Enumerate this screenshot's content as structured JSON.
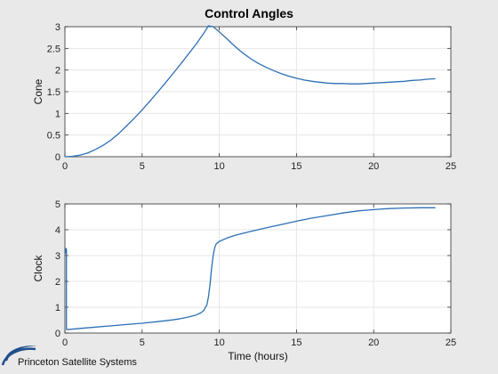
{
  "figure_title": "Control Angles",
  "logo": {
    "text": "Princeton Satellite Systems",
    "color": "#1f4e8c"
  },
  "colors": {
    "line": "#2d6fb5",
    "background": "#e9e9e9",
    "axes_bg": "#ffffff",
    "grid": "#e6e6e6"
  },
  "chart_data": [
    {
      "type": "line",
      "title": "Control Angles",
      "xlabel": "",
      "ylabel": "Cone",
      "xlim": [
        0,
        25
      ],
      "ylim": [
        0,
        3
      ],
      "xticks": [
        "0",
        "5",
        "10",
        "15",
        "20",
        "25"
      ],
      "yticks": [
        "0",
        "0.5",
        "1",
        "1.5",
        "2",
        "2.5",
        "3"
      ],
      "grid": true,
      "series": [
        {
          "x": [
            0,
            0.5,
            1,
            1.5,
            2,
            2.5,
            3,
            3.5,
            4,
            4.5,
            5,
            5.5,
            6,
            6.5,
            7,
            7.5,
            8,
            8.5,
            9,
            9.3,
            9.6,
            10,
            10.5,
            11,
            11.5,
            12,
            12.5,
            13,
            13.5,
            14,
            14.5,
            15,
            15.5,
            16,
            16.5,
            17,
            17.5,
            18,
            18.5,
            19,
            19.5,
            20,
            20.5,
            21,
            21.5,
            22,
            22.5,
            23,
            23.5,
            24
          ],
          "y": [
            0,
            0.01,
            0.04,
            0.09,
            0.17,
            0.27,
            0.39,
            0.54,
            0.71,
            0.89,
            1.08,
            1.28,
            1.49,
            1.7,
            1.92,
            2.14,
            2.37,
            2.6,
            2.85,
            3.02,
            3.0,
            2.88,
            2.72,
            2.55,
            2.4,
            2.27,
            2.16,
            2.07,
            1.99,
            1.92,
            1.86,
            1.81,
            1.77,
            1.74,
            1.72,
            1.7,
            1.69,
            1.69,
            1.68,
            1.68,
            1.69,
            1.7,
            1.71,
            1.72,
            1.73,
            1.74,
            1.76,
            1.77,
            1.79,
            1.8
          ]
        }
      ]
    },
    {
      "type": "line",
      "title": "",
      "xlabel": "Time (hours)",
      "ylabel": "Clock",
      "xlim": [
        0,
        25
      ],
      "ylim": [
        0,
        5
      ],
      "xticks": [
        "0",
        "5",
        "10",
        "15",
        "20",
        "25"
      ],
      "yticks": [
        "0",
        "1",
        "2",
        "3",
        "4",
        "5"
      ],
      "grid": true,
      "series": [
        {
          "x": [
            0.05,
            0.05,
            0.1,
            0.1,
            0.12,
            1,
            2,
            3,
            4,
            5,
            6,
            7,
            7.5,
            8,
            8.5,
            8.8,
            9,
            9.2,
            9.3,
            9.4,
            9.5,
            9.6,
            9.7,
            9.8,
            10,
            10.5,
            11,
            12,
            13,
            14,
            15,
            16,
            17,
            18,
            19,
            20,
            21,
            22,
            23,
            24
          ],
          "y": [
            3.3,
            3.1,
            3.25,
            0.15,
            0.13,
            0.18,
            0.23,
            0.28,
            0.33,
            0.38,
            0.44,
            0.51,
            0.56,
            0.62,
            0.7,
            0.78,
            0.88,
            1.1,
            1.4,
            1.9,
            2.5,
            3.0,
            3.3,
            3.45,
            3.55,
            3.68,
            3.78,
            3.93,
            4.07,
            4.2,
            4.33,
            4.45,
            4.55,
            4.65,
            4.73,
            4.78,
            4.82,
            4.84,
            4.85,
            4.85
          ]
        }
      ]
    }
  ]
}
